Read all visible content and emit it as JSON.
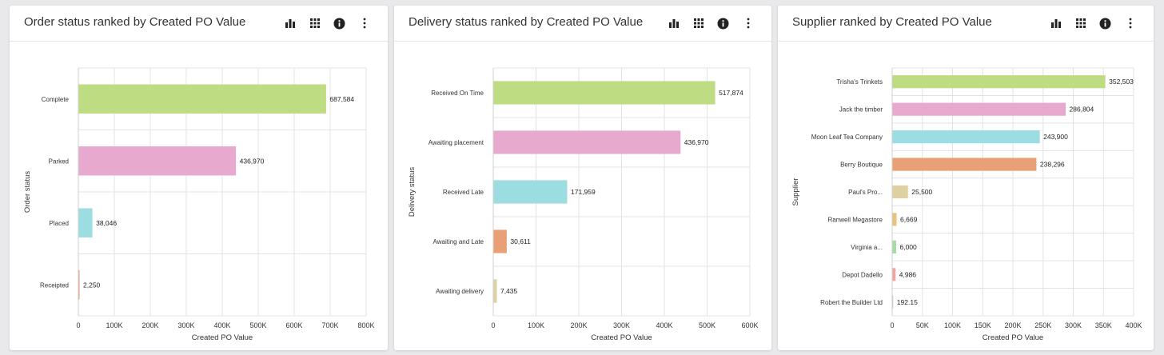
{
  "panels": [
    {
      "title": "Order status ranked by Created PO Value",
      "icons": [
        "bar-chart-icon",
        "grid-icon",
        "info-icon",
        "more-vert-icon"
      ],
      "chart_data": {
        "type": "bar",
        "orientation": "horizontal",
        "categories": [
          "Complete",
          "Parked",
          "Placed",
          "Receipted"
        ],
        "values": [
          687584,
          436970,
          38046,
          2250
        ],
        "value_labels": [
          "687,584",
          "436,970",
          "38,046",
          "2,250"
        ],
        "colors": [
          "#bedd82",
          "#e8a9cf",
          "#9bdde1",
          "#e9a077"
        ],
        "xlabel": "Created PO Value",
        "ylabel": "Order status",
        "xlim": [
          0,
          800000
        ],
        "xticks": [
          0,
          100000,
          200000,
          300000,
          400000,
          500000,
          600000,
          700000,
          800000
        ],
        "xtick_labels": [
          "0",
          "100K",
          "200K",
          "300K",
          "400K",
          "500K",
          "600K",
          "700K",
          "800K"
        ],
        "grid": true
      }
    },
    {
      "title": "Delivery status ranked by Created PO Value",
      "icons": [
        "bar-chart-icon",
        "grid-icon",
        "info-icon",
        "more-vert-icon"
      ],
      "chart_data": {
        "type": "bar",
        "orientation": "horizontal",
        "categories": [
          "Received On Time",
          "Awaiting placement",
          "Received Late",
          "Awaiting and Late",
          "Awaiting delivery"
        ],
        "values": [
          517874,
          436970,
          171959,
          30611,
          7435
        ],
        "value_labels": [
          "517,874",
          "436,970",
          "171,959",
          "30,611",
          "7,435"
        ],
        "colors": [
          "#bedd82",
          "#e8a9cf",
          "#9bdde1",
          "#e9a077",
          "#ddd1a4"
        ],
        "xlabel": "Created PO Value",
        "ylabel": "Delivery status",
        "xlim": [
          0,
          600000
        ],
        "xticks": [
          0,
          100000,
          200000,
          300000,
          400000,
          500000,
          600000
        ],
        "xtick_labels": [
          "0",
          "100K",
          "200K",
          "300K",
          "400K",
          "500K",
          "600K"
        ],
        "grid": true
      }
    },
    {
      "title": "Supplier ranked by Created PO Value",
      "icons": [
        "bar-chart-icon",
        "grid-icon",
        "info-icon",
        "more-vert-icon"
      ],
      "chart_data": {
        "type": "bar",
        "orientation": "horizontal",
        "categories": [
          "Trisha's Trinkets",
          "Jack the timber",
          "Moon Leaf Tea Company",
          "Berry Boutique",
          "Paul's Pro...",
          "Ranwell Megastore",
          "Virginia a...",
          "Depot Dadello",
          "Robert the Builder Ltd"
        ],
        "values": [
          352503,
          286804,
          243900,
          238296,
          25500,
          6669,
          6000,
          4986,
          192.15
        ],
        "value_labels": [
          "352,503",
          "286,804",
          "243,900",
          "238,296",
          "25,500",
          "6,669",
          "6,000",
          "4,986",
          "192.15"
        ],
        "colors": [
          "#bedd82",
          "#e8a9cf",
          "#9bdde1",
          "#e9a077",
          "#ddd1a4",
          "#e6c47a",
          "#a7dba4",
          "#f0a5a0",
          "#c9c9c9"
        ],
        "xlabel": "Created PO Value",
        "ylabel": "Supplier",
        "xlim": [
          0,
          400000
        ],
        "xticks": [
          0,
          50000,
          100000,
          150000,
          200000,
          250000,
          300000,
          350000,
          400000
        ],
        "xtick_labels": [
          "0",
          "50K",
          "100K",
          "150K",
          "200K",
          "250K",
          "300K",
          "350K",
          "400K"
        ],
        "grid": true
      }
    }
  ]
}
